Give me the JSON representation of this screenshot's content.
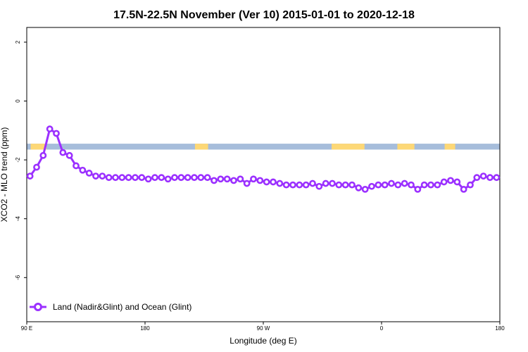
{
  "chart_data": {
    "type": "line",
    "title": "17.5N-22.5N November (Ver 10)   2015-01-01 to 2020-12-18",
    "xlabel": "Longitude (deg E)",
    "ylabel": "XCO2 - MLO trend (ppm)",
    "xlim": [
      90,
      450
    ],
    "ylim": [
      -7.5,
      2.5
    ],
    "x_ticks": [
      {
        "value": 90,
        "label": "90 E"
      },
      {
        "value": 180,
        "label": "180"
      },
      {
        "value": 270,
        "label": "90 W"
      },
      {
        "value": 360,
        "label": "0"
      },
      {
        "value": 450,
        "label": "180"
      }
    ],
    "x_ticks_extra": [
      {
        "value": 450,
        "label": ""
      }
    ],
    "y_ticks": [
      {
        "value": 2,
        "label": "2"
      },
      {
        "value": 0,
        "label": "0"
      },
      {
        "value": -2,
        "label": "-2"
      },
      {
        "value": -4,
        "label": "-4"
      },
      {
        "value": -6,
        "label": "-6"
      }
    ],
    "grid": false,
    "legend_position": "bottom-left",
    "land_ocean_band": {
      "y_range": [
        -1.65,
        -1.45
      ],
      "ocean_color": "#a6bddb",
      "land_color": "#fdd876",
      "land_segments": [
        [
          93,
          105
        ],
        [
          218,
          228
        ],
        [
          322,
          347
        ],
        [
          372,
          385
        ],
        [
          408,
          416
        ]
      ]
    },
    "series": [
      {
        "name": "Land (Nadir&Glint) and Ocean (Glint)",
        "color": "#9b30ff",
        "x": [
          92.5,
          97.5,
          102.5,
          107.5,
          112.5,
          117.5,
          122.5,
          127.5,
          132.5,
          137.5,
          142.5,
          147.5,
          152.5,
          157.5,
          162.5,
          167.5,
          172.5,
          177.5,
          182.5,
          187.5,
          192.5,
          197.5,
          202.5,
          207.5,
          212.5,
          217.5,
          222.5,
          227.5,
          232.5,
          237.5,
          242.5,
          247.5,
          252.5,
          257.5,
          262.5,
          267.5,
          272.5,
          277.5,
          282.5,
          287.5,
          292.5,
          297.5,
          302.5,
          307.5,
          312.5,
          317.5,
          322.5,
          327.5,
          332.5,
          337.5,
          342.5,
          347.5,
          352.5,
          357.5,
          362.5,
          367.5,
          372.5,
          377.5,
          382.5,
          387.5,
          392.5,
          397.5,
          402.5,
          407.5,
          412.5,
          417.5,
          422.5,
          427.5,
          432.5,
          437.5,
          442.5,
          447.5
        ],
        "y": [
          -2.55,
          -2.25,
          -1.85,
          -0.95,
          -1.1,
          -1.75,
          -1.85,
          -2.2,
          -2.35,
          -2.45,
          -2.55,
          -2.55,
          -2.6,
          -2.6,
          -2.6,
          -2.6,
          -2.6,
          -2.6,
          -2.65,
          -2.6,
          -2.6,
          -2.65,
          -2.6,
          -2.6,
          -2.6,
          -2.6,
          -2.6,
          -2.6,
          -2.7,
          -2.65,
          -2.65,
          -2.7,
          -2.65,
          -2.8,
          -2.65,
          -2.7,
          -2.75,
          -2.75,
          -2.8,
          -2.85,
          -2.85,
          -2.85,
          -2.85,
          -2.8,
          -2.9,
          -2.8,
          -2.8,
          -2.85,
          -2.85,
          -2.85,
          -2.95,
          -3.0,
          -2.9,
          -2.85,
          -2.85,
          -2.8,
          -2.85,
          -2.8,
          -2.85,
          -3.0,
          -2.85,
          -2.85,
          -2.85,
          -2.75,
          -2.7,
          -2.75,
          -3.0,
          -2.85,
          -2.6,
          -2.55,
          -2.6,
          -2.6
        ]
      }
    ]
  }
}
